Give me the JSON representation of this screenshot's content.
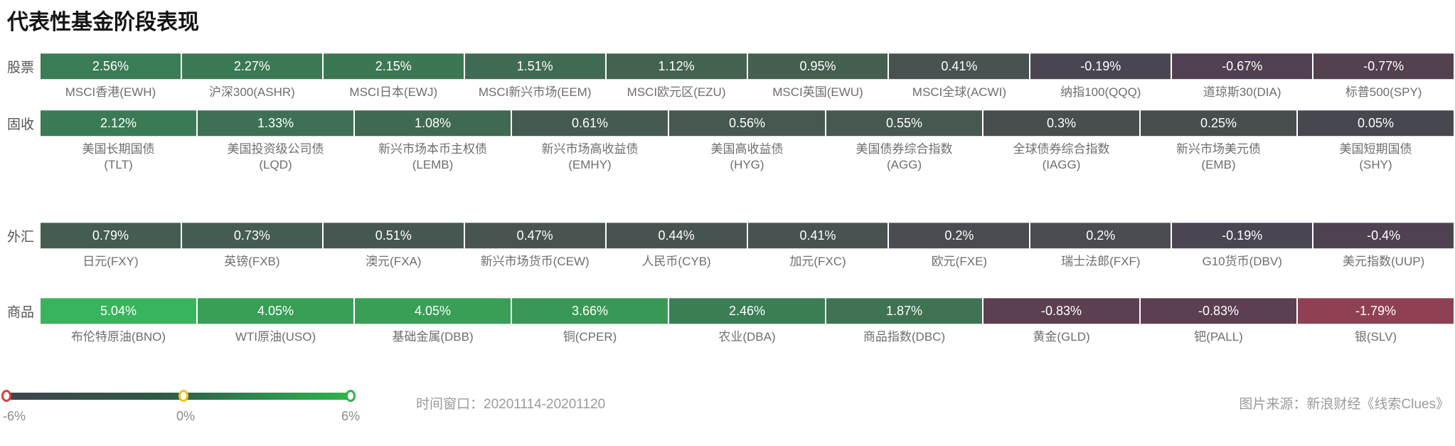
{
  "title": "代表性基金阶段表现",
  "footer": {
    "time_window": "时间窗口：20201114-20201120",
    "source": "图片来源：新浪财经《线索Clues》"
  },
  "legend": {
    "min_label": "-6%",
    "mid_label": "0%",
    "max_label": "6%",
    "handle_colors": {
      "min": "#e03e3e",
      "mid": "#f2c21c",
      "max": "#2eb34f"
    },
    "track_gradient": [
      "#3e444e",
      "#2e5a45",
      "#2f9150",
      "#2fb44d"
    ]
  },
  "chart_data": {
    "type": "heatmap",
    "title": "代表性基金阶段表现",
    "color_scale_range_pct": [
      -6,
      6
    ],
    "rows": [
      {
        "category": "股票",
        "cells": [
          {
            "name": "MSCI香港(EWH)",
            "pct": "2.56%",
            "value": 2.56,
            "color": "#3A7C55"
          },
          {
            "name": "沪深300(ASHR)",
            "pct": "2.27%",
            "value": 2.27,
            "color": "#3B7954"
          },
          {
            "name": "MSCI日本(EWJ)",
            "pct": "2.15%",
            "value": 2.15,
            "color": "#3C7754"
          },
          {
            "name": "MSCI新兴市场(EEM)",
            "pct": "1.51%",
            "value": 1.51,
            "color": "#406B52"
          },
          {
            "name": "MSCI欧元区(EZU)",
            "pct": "1.12%",
            "value": 1.12,
            "color": "#436250"
          },
          {
            "name": "MSCI英国(EWU)",
            "pct": "0.95%",
            "value": 0.95,
            "color": "#455F51"
          },
          {
            "name": "MSCI全球(ACWI)",
            "pct": "0.41%",
            "value": 0.41,
            "color": "#485251"
          },
          {
            "name": "纳指100(QQQ)",
            "pct": "-0.19%",
            "value": -0.19,
            "color": "#4B4551"
          },
          {
            "name": "道琼斯30(DIA)",
            "pct": "-0.67%",
            "value": -0.67,
            "color": "#514051"
          },
          {
            "name": "标普500(SPY)",
            "pct": "-0.77%",
            "value": -0.77,
            "color": "#534150"
          }
        ]
      },
      {
        "category": "固收",
        "cells": [
          {
            "name": "美国长期国债\n(TLT)",
            "pct": "2.12%",
            "value": 2.12,
            "color": "#3A7B55"
          },
          {
            "name": "美国投资级公司债\n(LQD)",
            "pct": "1.33%",
            "value": 1.33,
            "color": "#3E7153"
          },
          {
            "name": "新兴市场本币主权债\n(LEMB)",
            "pct": "1.08%",
            "value": 1.08,
            "color": "#406951"
          },
          {
            "name": "新兴市场高收益债\n(EMHY)",
            "pct": "0.61%",
            "value": 0.61,
            "color": "#455A50"
          },
          {
            "name": "美国高收益债\n(HYG)",
            "pct": "0.56%",
            "value": 0.56,
            "color": "#465850"
          },
          {
            "name": "美国债券综合指数\n(AGG)",
            "pct": "0.55%",
            "value": 0.55,
            "color": "#465850"
          },
          {
            "name": "全球债券综合指数\n(IAGG)",
            "pct": "0.3%",
            "value": 0.3,
            "color": "#484E50"
          },
          {
            "name": "新兴市场美元债\n(EMB)",
            "pct": "0.25%",
            "value": 0.25,
            "color": "#484D50"
          },
          {
            "name": "美国短期国债\n(SHY)",
            "pct": "0.05%",
            "value": 0.05,
            "color": "#464850"
          }
        ]
      },
      {
        "category": "外汇",
        "cells": [
          {
            "name": "日元(FXY)",
            "pct": "0.79%",
            "value": 0.79,
            "color": "#445D50"
          },
          {
            "name": "英镑(FXB)",
            "pct": "0.73%",
            "value": 0.73,
            "color": "#455C50"
          },
          {
            "name": "澳元(FXA)",
            "pct": "0.51%",
            "value": 0.51,
            "color": "#465650"
          },
          {
            "name": "新兴市场货币(CEW)",
            "pct": "0.47%",
            "value": 0.47,
            "color": "#475450"
          },
          {
            "name": "人民币(CYB)",
            "pct": "0.44%",
            "value": 0.44,
            "color": "#475350"
          },
          {
            "name": "加元(FXC)",
            "pct": "0.41%",
            "value": 0.41,
            "color": "#485251"
          },
          {
            "name": "欧元(FXE)",
            "pct": "0.2%",
            "value": 0.2,
            "color": "#494C50"
          },
          {
            "name": "瑞士法郎(FXF)",
            "pct": "0.2%",
            "value": 0.2,
            "color": "#494C50"
          },
          {
            "name": "G10货币(DBV)",
            "pct": "-0.19%",
            "value": -0.19,
            "color": "#4B4551"
          },
          {
            "name": "美元指数(UUP)",
            "pct": "-0.4%",
            "value": -0.4,
            "color": "#4E4251"
          }
        ]
      },
      {
        "category": "商品",
        "cells": [
          {
            "name": "布伦特原油(BNO)",
            "pct": "5.04%",
            "value": 5.04,
            "color": "#38B45D"
          },
          {
            "name": "WTI原油(USO)",
            "pct": "4.05%",
            "value": 4.05,
            "color": "#399E56"
          },
          {
            "name": "基础金属(DBB)",
            "pct": "4.05%",
            "value": 4.05,
            "color": "#399E56"
          },
          {
            "name": "铜(CPER)",
            "pct": "3.66%",
            "value": 3.66,
            "color": "#399855"
          },
          {
            "name": "农业(DBA)",
            "pct": "2.46%",
            "value": 2.46,
            "color": "#3B7E55"
          },
          {
            "name": "商品指数(DBC)",
            "pct": "1.87%",
            "value": 1.87,
            "color": "#3F7354"
          },
          {
            "name": "黄金(GLD)",
            "pct": "-0.83%",
            "value": -0.83,
            "color": "#5C3F51"
          },
          {
            "name": "钯(PALL)",
            "pct": "-0.83%",
            "value": -0.83,
            "color": "#5C3F51"
          },
          {
            "name": "银(SLV)",
            "pct": "-1.79%",
            "value": -1.79,
            "color": "#8F4153"
          }
        ]
      }
    ]
  }
}
